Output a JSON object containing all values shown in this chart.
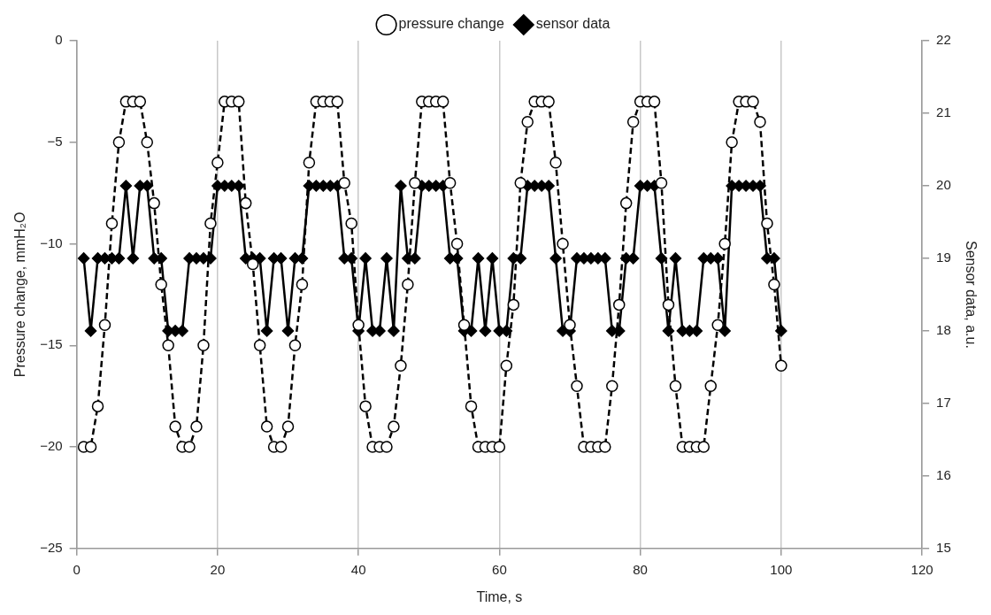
{
  "chart_data": {
    "type": "line",
    "xlabel": "Time, s",
    "ylabel": "Pressure change, mmH₂O",
    "y2label": "Sensor data, a.u.",
    "x": [
      1,
      2,
      3,
      4,
      5,
      6,
      7,
      8,
      9,
      10,
      11,
      12,
      13,
      14,
      15,
      16,
      17,
      18,
      19,
      20,
      21,
      22,
      23,
      24,
      25,
      26,
      27,
      28,
      29,
      30,
      31,
      32,
      33,
      34,
      35,
      36,
      37,
      38,
      39,
      40,
      41,
      42,
      43,
      44,
      45,
      46,
      47,
      48,
      49,
      50,
      51,
      52,
      53,
      54,
      55,
      56,
      57,
      58,
      59,
      60,
      61,
      62,
      63,
      64,
      65,
      66,
      67,
      68,
      69,
      70,
      71,
      72,
      73,
      74,
      75,
      76,
      77,
      78,
      79,
      80,
      81,
      82,
      83,
      84,
      85,
      86,
      87,
      88,
      89,
      90,
      91,
      92,
      93,
      94,
      95,
      96,
      97,
      98,
      99,
      100
    ],
    "series": [
      {
        "name": "pressure change",
        "color": "#000000",
        "marker": "circle",
        "line_style": "dashed",
        "values": [
          -20,
          -20,
          -18,
          -14,
          -9,
          -5,
          -3,
          -3,
          -3,
          -5,
          -8,
          -12,
          -15,
          -19,
          -20,
          -20,
          -19,
          -15,
          -9,
          -6,
          -3,
          -3,
          -3,
          -8,
          -11,
          -15,
          -19,
          -20,
          -20,
          -19,
          -15,
          -12,
          -6,
          -3,
          -3,
          -3,
          -3,
          -7,
          -9,
          -14,
          -18,
          -20,
          -20,
          -20,
          -19,
          -16,
          -12,
          -7,
          -3,
          -3,
          -3,
          -3,
          -7,
          -10,
          -14,
          -18,
          -20,
          -20,
          -20,
          -20,
          -16,
          -13,
          -7,
          -4,
          -3,
          -3,
          -3,
          -6,
          -10,
          -14,
          -17,
          -20,
          -20,
          -20,
          -20,
          -17,
          -13,
          -8,
          -4,
          -3,
          -3,
          -3,
          -7,
          -13,
          -17,
          -20,
          -20,
          -20,
          -20,
          -17,
          -14,
          -10,
          -5,
          -3,
          -3,
          -3,
          -4,
          -9,
          -12,
          -16
        ]
      },
      {
        "name": "sensor data",
        "color": "#000000",
        "marker": "diamond",
        "line_style": "solid",
        "axis": "y2",
        "values": [
          19,
          18,
          19,
          19,
          19,
          19,
          20,
          19,
          20,
          20,
          19,
          19,
          18,
          18,
          18,
          19,
          19,
          19,
          19,
          20,
          20,
          20,
          20,
          19,
          19,
          19,
          18,
          19,
          19,
          18,
          19,
          19,
          20,
          20,
          20,
          20,
          20,
          19,
          19,
          18,
          19,
          18,
          18,
          19,
          18,
          20,
          19,
          19,
          20,
          20,
          20,
          20,
          19,
          19,
          18,
          18,
          19,
          18,
          19,
          18,
          18,
          19,
          19,
          20,
          20,
          20,
          20,
          19,
          18,
          18,
          19,
          19,
          19,
          19,
          19,
          18,
          18,
          19,
          19,
          20,
          20,
          20,
          19,
          18,
          19,
          18,
          18,
          18,
          19,
          19,
          19,
          18,
          20,
          20,
          20,
          20,
          20,
          19,
          19,
          18
        ]
      }
    ],
    "xlim": [
      0,
      120
    ],
    "xticks": [
      0,
      20,
      40,
      60,
      80,
      100,
      120
    ],
    "ylim": [
      -25,
      0
    ],
    "yticks": [
      {
        "value": -25,
        "label": "−25"
      },
      {
        "value": -20,
        "label": "−20"
      },
      {
        "value": -15,
        "label": "−15"
      },
      {
        "value": -10,
        "label": "−10"
      },
      {
        "value": -5,
        "label": "−5"
      },
      0
    ],
    "y2lim": [
      15,
      22
    ],
    "y2ticks": [
      15,
      16,
      17,
      18,
      19,
      20,
      21,
      22
    ],
    "grid": "x",
    "legend": "top"
  }
}
